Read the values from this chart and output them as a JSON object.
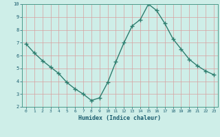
{
  "x": [
    0,
    1,
    2,
    3,
    4,
    5,
    6,
    7,
    8,
    9,
    10,
    11,
    12,
    13,
    14,
    15,
    16,
    17,
    18,
    19,
    20,
    21,
    22,
    23
  ],
  "y": [
    6.9,
    6.2,
    5.6,
    5.1,
    4.6,
    3.9,
    3.4,
    3.0,
    2.5,
    2.7,
    3.9,
    5.5,
    7.0,
    8.3,
    8.8,
    10.0,
    9.5,
    8.5,
    7.3,
    6.5,
    5.7,
    5.2,
    4.8,
    4.5
  ],
  "xlabel": "Humidex (Indice chaleur)",
  "line_color": "#2d7d6e",
  "marker_color": "#2d7d6e",
  "bg_color": "#ceeee8",
  "grid_color": "#d8a0a0",
  "tick_color": "#1a5c6e",
  "label_color": "#1a5c6e",
  "spine_color": "#4a9a8a",
  "ylim": [
    2,
    10
  ],
  "xlim_min": -0.5,
  "xlim_max": 23.5,
  "yticks": [
    2,
    3,
    4,
    5,
    6,
    7,
    8,
    9,
    10
  ],
  "xticks": [
    0,
    1,
    2,
    3,
    4,
    5,
    6,
    7,
    8,
    9,
    10,
    11,
    12,
    13,
    14,
    15,
    16,
    17,
    18,
    19,
    20,
    21,
    22,
    23
  ]
}
